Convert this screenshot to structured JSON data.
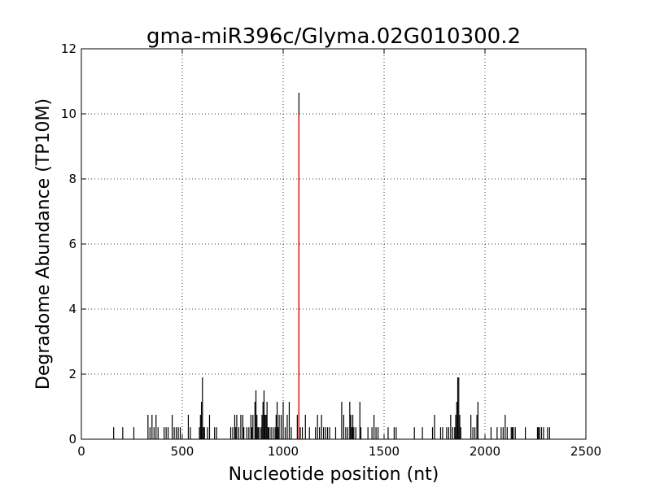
{
  "chart_data": {
    "type": "bar",
    "title": "gma-miR396c/Glyma.02G010300.2",
    "xlabel": "Nucleotide position (nt)",
    "ylabel": "Degradome Abundance (TP10M)",
    "xlim": [
      0,
      2500
    ],
    "ylim": [
      0,
      12
    ],
    "xticks": [
      0,
      500,
      1000,
      1500,
      2000,
      2500
    ],
    "yticks": [
      0,
      2,
      4,
      6,
      8,
      10,
      12
    ],
    "grid": true,
    "series": [
      {
        "color": "#000000",
        "points": [
          [
            160,
            0.37
          ],
          [
            205,
            0.37
          ],
          [
            260,
            0.37
          ],
          [
            330,
            0.75
          ],
          [
            340,
            0.37
          ],
          [
            350,
            0.75
          ],
          [
            360,
            0.37
          ],
          [
            370,
            0.75
          ],
          [
            380,
            0.37
          ],
          [
            410,
            0.37
          ],
          [
            420,
            0.37
          ],
          [
            430,
            0.37
          ],
          [
            450,
            0.75
          ],
          [
            460,
            0.37
          ],
          [
            470,
            0.37
          ],
          [
            480,
            0.37
          ],
          [
            490,
            0.37
          ],
          [
            530,
            0.75
          ],
          [
            540,
            0.37
          ],
          [
            585,
            0.37
          ],
          [
            590,
            0.75
          ],
          [
            595,
            1.15
          ],
          [
            600,
            1.9
          ],
          [
            605,
            0.37
          ],
          [
            610,
            0.37
          ],
          [
            625,
            0.37
          ],
          [
            635,
            0.75
          ],
          [
            660,
            0.37
          ],
          [
            670,
            0.37
          ],
          [
            740,
            0.37
          ],
          [
            750,
            0.37
          ],
          [
            760,
            0.75
          ],
          [
            765,
            0.37
          ],
          [
            770,
            0.75
          ],
          [
            780,
            0.37
          ],
          [
            790,
            0.75
          ],
          [
            800,
            0.75
          ],
          [
            805,
            0.37
          ],
          [
            820,
            0.37
          ],
          [
            830,
            0.37
          ],
          [
            840,
            0.75
          ],
          [
            845,
            0.37
          ],
          [
            850,
            0.75
          ],
          [
            860,
            1.15
          ],
          [
            865,
            1.5
          ],
          [
            870,
            0.75
          ],
          [
            875,
            0.37
          ],
          [
            880,
            0.37
          ],
          [
            890,
            0.37
          ],
          [
            895,
            0.75
          ],
          [
            900,
            1.15
          ],
          [
            905,
            1.5
          ],
          [
            910,
            0.75
          ],
          [
            915,
            0.75
          ],
          [
            920,
            1.15
          ],
          [
            925,
            0.37
          ],
          [
            930,
            0.37
          ],
          [
            940,
            0.37
          ],
          [
            950,
            0.37
          ],
          [
            960,
            0.37
          ],
          [
            965,
            0.75
          ],
          [
            970,
            1.15
          ],
          [
            975,
            0.37
          ],
          [
            980,
            0.75
          ],
          [
            990,
            0.75
          ],
          [
            1000,
            1.15
          ],
          [
            1010,
            0.37
          ],
          [
            1020,
            0.75
          ],
          [
            1030,
            1.15
          ],
          [
            1040,
            0.37
          ],
          [
            1070,
            0.75
          ],
          [
            1078,
            10.65
          ],
          [
            1085,
            0.37
          ],
          [
            1095,
            0.37
          ],
          [
            1110,
            0.75
          ],
          [
            1130,
            0.37
          ],
          [
            1160,
            0.37
          ],
          [
            1170,
            0.75
          ],
          [
            1180,
            0.37
          ],
          [
            1190,
            0.75
          ],
          [
            1200,
            0.37
          ],
          [
            1210,
            0.37
          ],
          [
            1220,
            0.37
          ],
          [
            1230,
            0.37
          ],
          [
            1260,
            0.37
          ],
          [
            1290,
            1.15
          ],
          [
            1300,
            0.75
          ],
          [
            1310,
            0.37
          ],
          [
            1320,
            0.37
          ],
          [
            1330,
            1.15
          ],
          [
            1335,
            0.75
          ],
          [
            1340,
            0.37
          ],
          [
            1345,
            0.75
          ],
          [
            1350,
            0.37
          ],
          [
            1360,
            0.37
          ],
          [
            1380,
            1.15
          ],
          [
            1385,
            0.37
          ],
          [
            1420,
            0.37
          ],
          [
            1440,
            0.37
          ],
          [
            1450,
            0.75
          ],
          [
            1460,
            0.37
          ],
          [
            1470,
            0.37
          ],
          [
            1520,
            0.37
          ],
          [
            1550,
            0.37
          ],
          [
            1560,
            0.37
          ],
          [
            1650,
            0.37
          ],
          [
            1690,
            0.37
          ],
          [
            1740,
            0.37
          ],
          [
            1750,
            0.75
          ],
          [
            1780,
            0.37
          ],
          [
            1790,
            0.37
          ],
          [
            1810,
            0.37
          ],
          [
            1820,
            0.37
          ],
          [
            1830,
            0.75
          ],
          [
            1840,
            0.37
          ],
          [
            1850,
            0.37
          ],
          [
            1855,
            0.75
          ],
          [
            1860,
            1.15
          ],
          [
            1865,
            1.9
          ],
          [
            1870,
            1.9
          ],
          [
            1875,
            0.75
          ],
          [
            1880,
            0.37
          ],
          [
            1930,
            0.75
          ],
          [
            1940,
            0.37
          ],
          [
            1950,
            0.37
          ],
          [
            1960,
            0.75
          ],
          [
            1965,
            1.15
          ],
          [
            2030,
            0.37
          ],
          [
            2060,
            0.37
          ],
          [
            2080,
            0.37
          ],
          [
            2090,
            0.37
          ],
          [
            2100,
            0.75
          ],
          [
            2110,
            0.37
          ],
          [
            2130,
            0.37
          ],
          [
            2135,
            0.37
          ],
          [
            2140,
            0.37
          ],
          [
            2150,
            0.37
          ],
          [
            2200,
            0.37
          ],
          [
            2260,
            0.37
          ],
          [
            2265,
            0.37
          ],
          [
            2270,
            0.37
          ],
          [
            2280,
            0.37
          ],
          [
            2290,
            0.37
          ],
          [
            2310,
            0.37
          ],
          [
            2320,
            0.37
          ]
        ]
      },
      {
        "color": "#ff0000",
        "points": [
          [
            1078,
            10.0
          ]
        ]
      }
    ]
  }
}
